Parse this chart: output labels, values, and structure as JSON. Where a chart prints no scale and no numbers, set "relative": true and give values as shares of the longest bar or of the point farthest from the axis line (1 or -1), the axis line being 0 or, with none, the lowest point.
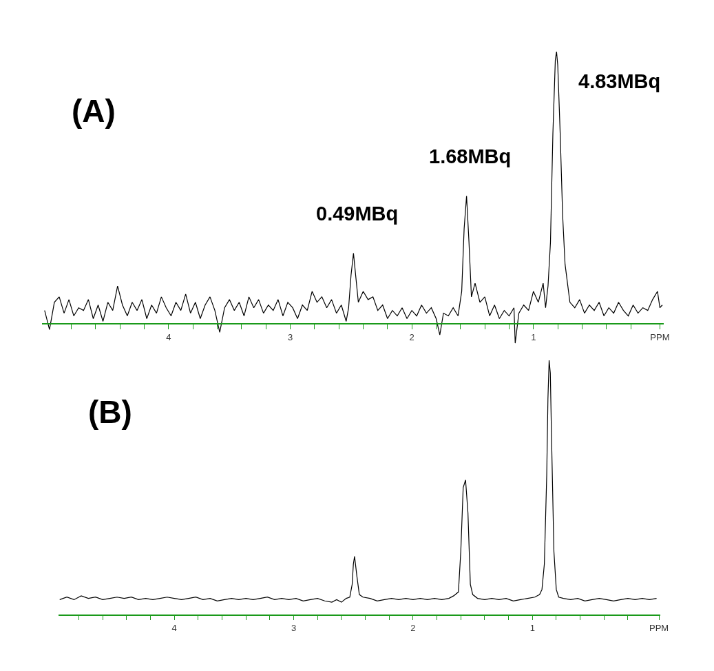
{
  "chart_data": [
    {
      "type": "line",
      "relative": true,
      "tick_labels": "x",
      "marker": "none",
      "line_style": "solid",
      "annotations": [
        "(A)",
        {
          "text": "0.49MBq",
          "x": 2.48,
          "y": 0.26
        },
        {
          "text": "1.68MBq",
          "x": 1.55,
          "y": 0.47
        },
        {
          "text": "4.83MBq",
          "x": 0.81,
          "y": 1.0
        }
      ],
      "xlim": [
        5.04,
        -0.07
      ],
      "xticks": [
        {
          "value": 4.8,
          "label": null
        },
        {
          "value": 4.6,
          "label": null
        },
        {
          "value": 4.4,
          "label": null
        },
        {
          "value": 4.2,
          "label": null
        },
        4,
        {
          "value": 3.8,
          "label": null
        },
        {
          "value": 3.6,
          "label": null
        },
        {
          "value": 3.4,
          "label": null
        },
        {
          "value": 3.2,
          "label": null
        },
        3,
        {
          "value": 2.8,
          "label": null
        },
        {
          "value": 2.6,
          "label": null
        },
        {
          "value": 2.4,
          "label": null
        },
        {
          "value": 2.2,
          "label": null
        },
        2,
        {
          "value": 1.8,
          "label": null
        },
        {
          "value": 1.6,
          "label": null
        },
        {
          "value": 1.4,
          "label": null
        },
        {
          "value": 1.2,
          "label": null
        },
        1,
        {
          "value": 0.8,
          "label": null
        },
        {
          "value": 0.6,
          "label": null
        },
        {
          "value": 0.4,
          "label": null
        },
        {
          "value": 0.2,
          "label": null
        },
        {
          "value": -0.04,
          "label": "PPM"
        }
      ],
      "series": [
        {
          "color": "#000000",
          "x": [
            5.02,
            4.98,
            4.94,
            4.9,
            4.86,
            4.82,
            4.78,
            4.74,
            4.7,
            4.66,
            4.62,
            4.58,
            4.54,
            4.5,
            4.46,
            4.42,
            4.38,
            4.34,
            4.3,
            4.26,
            4.22,
            4.18,
            4.14,
            4.1,
            4.06,
            4.02,
            3.98,
            3.94,
            3.9,
            3.86,
            3.82,
            3.78,
            3.74,
            3.7,
            3.66,
            3.62,
            3.58,
            3.54,
            3.5,
            3.46,
            3.42,
            3.38,
            3.34,
            3.3,
            3.26,
            3.22,
            3.18,
            3.14,
            3.1,
            3.06,
            3.02,
            2.98,
            2.94,
            2.9,
            2.86,
            2.82,
            2.78,
            2.74,
            2.7,
            2.66,
            2.62,
            2.58,
            2.54,
            2.52,
            2.5,
            2.48,
            2.46,
            2.44,
            2.4,
            2.36,
            2.32,
            2.28,
            2.24,
            2.2,
            2.16,
            2.12,
            2.08,
            2.04,
            2.0,
            1.96,
            1.92,
            1.88,
            1.84,
            1.8,
            1.77,
            1.74,
            1.7,
            1.66,
            1.62,
            1.59,
            1.57,
            1.55,
            1.53,
            1.51,
            1.48,
            1.44,
            1.4,
            1.36,
            1.32,
            1.28,
            1.24,
            1.2,
            1.16,
            1.15,
            1.12,
            1.08,
            1.04,
            1.0,
            0.96,
            0.92,
            0.9,
            0.88,
            0.86,
            0.84,
            0.82,
            0.81,
            0.8,
            0.78,
            0.76,
            0.74,
            0.72,
            0.7,
            0.66,
            0.62,
            0.58,
            0.54,
            0.5,
            0.46,
            0.42,
            0.38,
            0.34,
            0.3,
            0.26,
            0.22,
            0.18,
            0.14,
            0.1,
            0.06,
            0.02,
            -0.02,
            -0.04,
            -0.06
          ],
          "values": [
            0.05,
            -0.02,
            0.08,
            0.1,
            0.04,
            0.09,
            0.03,
            0.06,
            0.05,
            0.09,
            0.02,
            0.07,
            0.01,
            0.08,
            0.05,
            0.14,
            0.07,
            0.03,
            0.08,
            0.05,
            0.09,
            0.02,
            0.07,
            0.04,
            0.1,
            0.06,
            0.03,
            0.08,
            0.05,
            0.11,
            0.04,
            0.08,
            0.02,
            0.07,
            0.1,
            0.05,
            -0.03,
            0.06,
            0.09,
            0.05,
            0.08,
            0.03,
            0.1,
            0.06,
            0.09,
            0.04,
            0.07,
            0.05,
            0.09,
            0.03,
            0.08,
            0.06,
            0.02,
            0.07,
            0.05,
            0.12,
            0.08,
            0.1,
            0.06,
            0.09,
            0.04,
            0.07,
            0.01,
            0.06,
            0.18,
            0.26,
            0.17,
            0.08,
            0.12,
            0.09,
            0.1,
            0.05,
            0.07,
            0.02,
            0.05,
            0.03,
            0.06,
            0.02,
            0.05,
            0.03,
            0.07,
            0.04,
            0.06,
            0.02,
            -0.04,
            0.04,
            0.03,
            0.06,
            0.03,
            0.12,
            0.35,
            0.47,
            0.3,
            0.1,
            0.15,
            0.08,
            0.1,
            0.03,
            0.07,
            0.02,
            0.05,
            0.03,
            0.06,
            -0.07,
            0.04,
            0.07,
            0.05,
            0.12,
            0.08,
            0.15,
            0.06,
            0.14,
            0.3,
            0.7,
            0.97,
            1.0,
            0.95,
            0.7,
            0.4,
            0.22,
            0.15,
            0.08,
            0.06,
            0.09,
            0.04,
            0.07,
            0.05,
            0.08,
            0.03,
            0.06,
            0.04,
            0.08,
            0.05,
            0.03,
            0.07,
            0.04,
            0.06,
            0.05,
            0.09,
            0.12,
            0.06,
            0.07
          ]
        }
      ]
    },
    {
      "type": "line",
      "relative": true,
      "tick_labels": "x",
      "marker": "none",
      "line_style": "solid",
      "annotations": [
        "(B)"
      ],
      "xlim": [
        4.97,
        -0.07
      ],
      "xticks": [
        {
          "value": 4.8,
          "label": null
        },
        {
          "value": 4.6,
          "label": null
        },
        {
          "value": 4.4,
          "label": null
        },
        {
          "value": 4.2,
          "label": null
        },
        4,
        {
          "value": 3.8,
          "label": null
        },
        {
          "value": 3.6,
          "label": null
        },
        {
          "value": 3.4,
          "label": null
        },
        {
          "value": 3.2,
          "label": null
        },
        3,
        {
          "value": 2.8,
          "label": null
        },
        {
          "value": 2.6,
          "label": null
        },
        {
          "value": 2.4,
          "label": null
        },
        {
          "value": 2.2,
          "label": null
        },
        2,
        {
          "value": 1.8,
          "label": null
        },
        {
          "value": 1.6,
          "label": null
        },
        {
          "value": 1.4,
          "label": null
        },
        {
          "value": 1.2,
          "label": null
        },
        1,
        {
          "value": 0.8,
          "label": null
        },
        {
          "value": 0.6,
          "label": null
        },
        {
          "value": 0.4,
          "label": null
        },
        {
          "value": 0.2,
          "label": null
        },
        {
          "value": -0.06,
          "label": "PPM"
        }
      ],
      "series": [
        {
          "color": "#000000",
          "x": [
            4.96,
            4.9,
            4.84,
            4.78,
            4.72,
            4.66,
            4.6,
            4.54,
            4.48,
            4.42,
            4.36,
            4.3,
            4.24,
            4.18,
            4.12,
            4.06,
            4.0,
            3.94,
            3.88,
            3.82,
            3.76,
            3.7,
            3.64,
            3.58,
            3.52,
            3.46,
            3.4,
            3.34,
            3.28,
            3.22,
            3.16,
            3.1,
            3.04,
            2.98,
            2.92,
            2.86,
            2.8,
            2.74,
            2.68,
            2.64,
            2.6,
            2.56,
            2.53,
            2.51,
            2.5,
            2.49,
            2.47,
            2.45,
            2.42,
            2.36,
            2.3,
            2.24,
            2.18,
            2.12,
            2.06,
            2.0,
            1.94,
            1.88,
            1.82,
            1.76,
            1.7,
            1.66,
            1.62,
            1.6,
            1.58,
            1.56,
            1.54,
            1.52,
            1.5,
            1.46,
            1.4,
            1.34,
            1.28,
            1.22,
            1.16,
            1.1,
            1.04,
            0.98,
            0.94,
            0.92,
            0.9,
            0.88,
            0.87,
            0.86,
            0.85,
            0.84,
            0.82,
            0.8,
            0.78,
            0.74,
            0.68,
            0.62,
            0.56,
            0.5,
            0.44,
            0.38,
            0.32,
            0.26,
            0.2,
            0.14,
            0.08,
            0.02,
            -0.04
          ],
          "values": [
            0.06,
            0.07,
            0.06,
            0.075,
            0.065,
            0.07,
            0.06,
            0.065,
            0.07,
            0.065,
            0.07,
            0.06,
            0.065,
            0.06,
            0.065,
            0.07,
            0.065,
            0.06,
            0.065,
            0.07,
            0.06,
            0.065,
            0.055,
            0.06,
            0.065,
            0.06,
            0.065,
            0.06,
            0.065,
            0.07,
            0.06,
            0.065,
            0.06,
            0.065,
            0.055,
            0.06,
            0.065,
            0.055,
            0.05,
            0.06,
            0.05,
            0.065,
            0.07,
            0.12,
            0.2,
            0.23,
            0.15,
            0.08,
            0.07,
            0.065,
            0.055,
            0.06,
            0.065,
            0.06,
            0.065,
            0.06,
            0.065,
            0.06,
            0.065,
            0.06,
            0.065,
            0.075,
            0.09,
            0.25,
            0.5,
            0.53,
            0.4,
            0.12,
            0.08,
            0.065,
            0.06,
            0.065,
            0.06,
            0.065,
            0.055,
            0.06,
            0.065,
            0.07,
            0.08,
            0.1,
            0.2,
            0.55,
            0.85,
            1.0,
            0.95,
            0.7,
            0.25,
            0.1,
            0.07,
            0.065,
            0.06,
            0.065,
            0.055,
            0.06,
            0.065,
            0.06,
            0.055,
            0.06,
            0.065,
            0.06,
            0.065,
            0.06,
            0.065
          ]
        }
      ]
    }
  ]
}
